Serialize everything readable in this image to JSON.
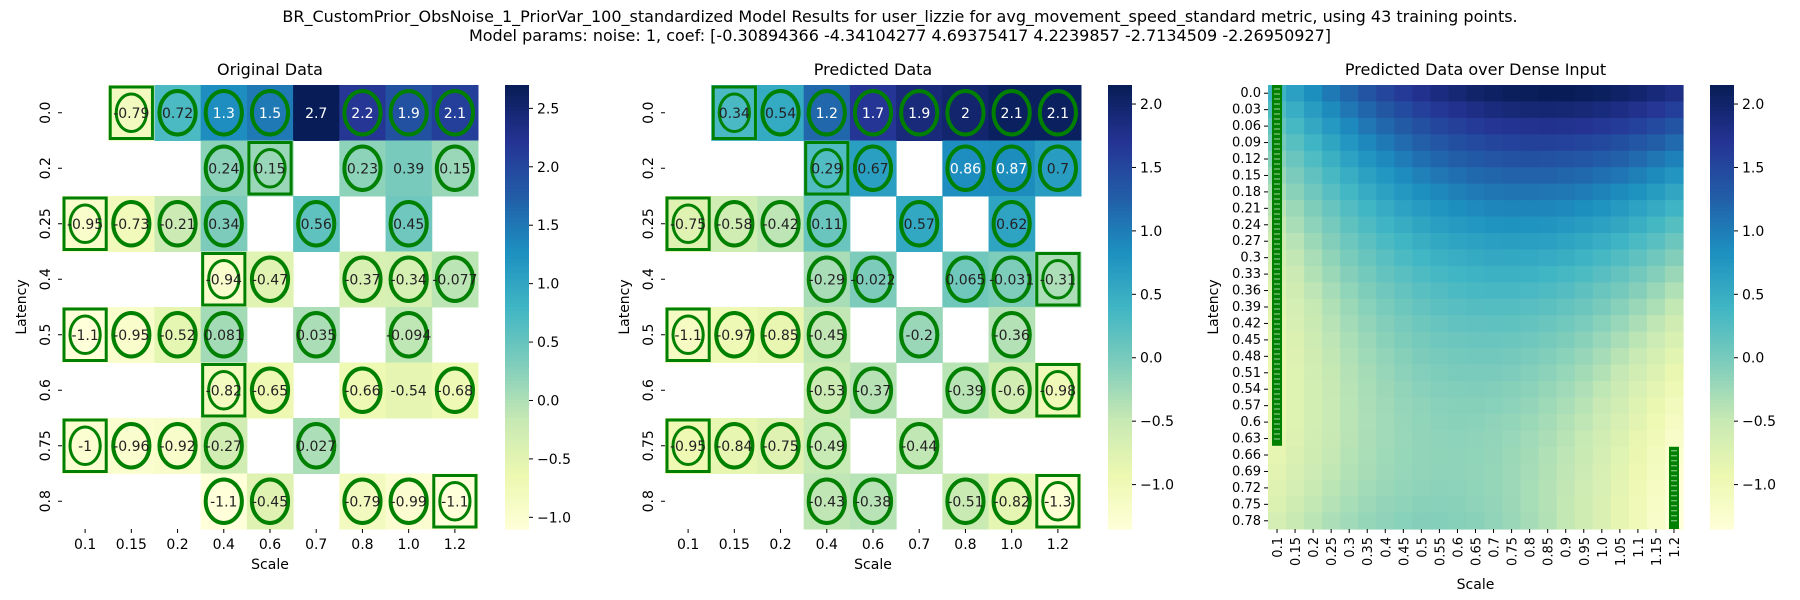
{
  "title_line1": "BR_CustomPrior_ObsNoise_1_PriorVar_100_standardized Model Results for user_lizzie for avg_movement_speed_standard metric, using 43 training points.",
  "title_line2": "Model params: noise: 1, coef: [-0.30894366 -4.34104277  4.69375417  4.2239857  -2.7134509  -2.26950927]",
  "chart_data": [
    {
      "type": "heatmap",
      "title": "Original Data",
      "xlabel": "Scale",
      "ylabel": "Latency",
      "x": [
        "0.1",
        "0.15",
        "0.2",
        "0.4",
        "0.6",
        "0.7",
        "0.8",
        "1.0",
        "1.2"
      ],
      "y": [
        "0.0",
        "0.2",
        "0.25",
        "0.4",
        "0.5",
        "0.6",
        "0.75",
        "0.8"
      ],
      "values": [
        [
          null,
          -0.79,
          0.72,
          1.3,
          1.5,
          2.7,
          2.2,
          1.9,
          2.1
        ],
        [
          null,
          null,
          null,
          0.24,
          0.15,
          null,
          0.23,
          0.39,
          0.15
        ],
        [
          -0.95,
          -0.73,
          -0.21,
          0.34,
          null,
          0.56,
          null,
          0.45,
          null
        ],
        [
          null,
          null,
          null,
          -0.94,
          -0.47,
          null,
          -0.37,
          -0.34,
          -0.077
        ],
        [
          -1.1,
          -0.95,
          -0.52,
          0.081,
          null,
          0.035,
          null,
          -0.094,
          null
        ],
        [
          null,
          null,
          null,
          -0.82,
          -0.65,
          null,
          -0.66,
          -0.54,
          -0.68
        ],
        [
          -1,
          -0.96,
          -0.92,
          -0.27,
          null,
          0.027,
          null,
          null,
          null
        ],
        [
          null,
          null,
          null,
          -1.1,
          -0.45,
          null,
          -0.79,
          -0.99,
          -1.1
        ]
      ],
      "markers": [
        [
          null,
          "rect",
          "ellipse",
          "ellipse",
          "ellipse",
          null,
          "ellipse",
          "ellipse",
          "ellipse"
        ],
        [
          null,
          null,
          null,
          "ellipse",
          "rect",
          null,
          "ellipse",
          null,
          "ellipse"
        ],
        [
          "rect",
          "ellipse",
          "ellipse",
          "ellipse",
          null,
          "ellipse",
          null,
          "ellipse",
          null
        ],
        [
          null,
          null,
          null,
          "rect",
          "ellipse",
          null,
          "ellipse",
          "ellipse",
          "ellipse"
        ],
        [
          "rect",
          "ellipse",
          "ellipse",
          "ellipse",
          null,
          "ellipse",
          null,
          "ellipse",
          null
        ],
        [
          null,
          null,
          null,
          "rect",
          "ellipse",
          null,
          "ellipse",
          null,
          "ellipse"
        ],
        [
          "rect",
          "ellipse",
          "ellipse",
          "ellipse",
          null,
          "ellipse",
          null,
          null,
          null
        ],
        [
          null,
          null,
          null,
          "ellipse",
          "ellipse",
          null,
          "ellipse",
          "ellipse",
          "rect"
        ]
      ],
      "colorbar": {
        "min": -1.1,
        "max": 2.7,
        "ticks": [
          -1.0,
          -0.5,
          0.0,
          0.5,
          1.0,
          1.5,
          2.0,
          2.5
        ]
      }
    },
    {
      "type": "heatmap",
      "title": "Predicted Data",
      "xlabel": "Scale",
      "ylabel": "Latency",
      "x": [
        "0.1",
        "0.15",
        "0.2",
        "0.4",
        "0.6",
        "0.7",
        "0.8",
        "1.0",
        "1.2"
      ],
      "y": [
        "0.0",
        "0.2",
        "0.25",
        "0.4",
        "0.5",
        "0.6",
        "0.75",
        "0.8"
      ],
      "values": [
        [
          null,
          0.34,
          0.54,
          1.2,
          1.7,
          1.9,
          2,
          2.1,
          2.1
        ],
        [
          null,
          null,
          null,
          0.29,
          0.67,
          null,
          0.86,
          0.87,
          0.7
        ],
        [
          -0.75,
          -0.58,
          -0.42,
          0.11,
          null,
          0.57,
          null,
          0.62,
          null
        ],
        [
          null,
          null,
          null,
          -0.29,
          -0.022,
          null,
          0.065,
          -0.031,
          -0.31
        ],
        [
          -1.1,
          -0.97,
          -0.85,
          -0.45,
          null,
          -0.2,
          null,
          -0.36,
          null
        ],
        [
          null,
          null,
          null,
          -0.53,
          -0.37,
          null,
          -0.39,
          -0.6,
          -0.98
        ],
        [
          -0.95,
          -0.84,
          -0.75,
          -0.49,
          null,
          -0.44,
          null,
          null,
          null
        ],
        [
          null,
          null,
          null,
          -0.43,
          -0.38,
          null,
          -0.51,
          -0.82,
          -1.3
        ]
      ],
      "markers": [
        [
          null,
          "rect",
          "ellipse",
          "ellipse",
          "ellipse",
          "ellipse",
          "ellipse",
          "ellipse",
          "ellipse"
        ],
        [
          null,
          null,
          null,
          "rect",
          "ellipse",
          null,
          "ellipse",
          "ellipse",
          "ellipse"
        ],
        [
          "rect",
          "ellipse",
          "ellipse",
          "ellipse",
          null,
          "ellipse",
          null,
          "ellipse",
          null
        ],
        [
          null,
          null,
          null,
          "ellipse",
          "ellipse",
          null,
          "ellipse",
          "ellipse",
          "rect"
        ],
        [
          "rect",
          "ellipse",
          "ellipse",
          "ellipse",
          null,
          "ellipse",
          null,
          "ellipse",
          null
        ],
        [
          null,
          null,
          null,
          "ellipse",
          "ellipse",
          null,
          "ellipse",
          "ellipse",
          "rect"
        ],
        [
          "rect",
          "ellipse",
          "ellipse",
          "ellipse",
          null,
          "ellipse",
          null,
          null,
          null
        ],
        [
          null,
          null,
          null,
          "ellipse",
          "ellipse",
          null,
          "ellipse",
          "ellipse",
          "rect"
        ]
      ],
      "colorbar": {
        "min": -1.35,
        "max": 2.15,
        "ticks": [
          -1.0,
          -0.5,
          0.0,
          0.5,
          1.0,
          1.5,
          2.0
        ]
      }
    },
    {
      "type": "heatmap",
      "title": "Predicted Data over Dense Input",
      "xlabel": "Scale",
      "ylabel": "Latency",
      "x": [
        "0.1",
        "0.15",
        "0.2",
        "0.25",
        "0.3",
        "0.35",
        "0.4",
        "0.45",
        "0.5",
        "0.55",
        "0.6",
        "0.65",
        "0.7",
        "0.75",
        "0.8",
        "0.85",
        "0.9",
        "0.95",
        "1.0",
        "1.05",
        "1.1",
        "1.15",
        "1.2"
      ],
      "y": [
        "0.0",
        "0.03",
        "0.06",
        "0.09",
        "0.12",
        "0.15",
        "0.18",
        "0.21",
        "0.24",
        "0.27",
        "0.3",
        "0.33",
        "0.36",
        "0.39",
        "0.42",
        "0.45",
        "0.48",
        "0.51",
        "0.54",
        "0.57",
        "0.6",
        "0.63",
        "0.66",
        "0.69",
        "0.72",
        "0.75",
        "0.78"
      ],
      "model_coef": [
        -0.30894366,
        -4.34104277,
        4.69375417,
        4.2239857,
        -2.7134509,
        -2.26950927
      ],
      "colorbar": {
        "min": -1.35,
        "max": 2.15,
        "ticks": [
          -1.0,
          -0.5,
          0.0,
          0.5,
          1.0,
          1.5,
          2.0
        ]
      }
    }
  ],
  "colors": {
    "marker": "#008000",
    "colormap": [
      "#ffffd9",
      "#edf8b1",
      "#c7e9b4",
      "#7fcdbb",
      "#41b6c4",
      "#1d91c0",
      "#225ea8",
      "#253494",
      "#081d58"
    ]
  }
}
